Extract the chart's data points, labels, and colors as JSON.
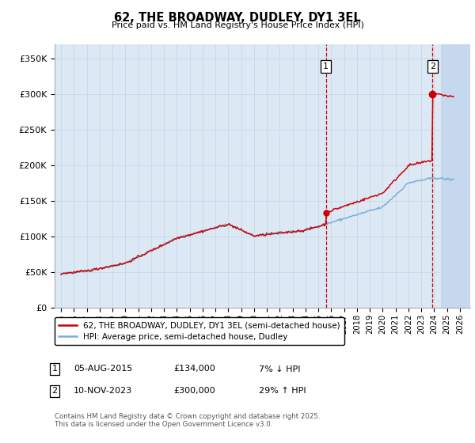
{
  "title": "62, THE BROADWAY, DUDLEY, DY1 3EL",
  "subtitle": "Price paid vs. HM Land Registry's House Price Index (HPI)",
  "ylabel_ticks": [
    "£0",
    "£50K",
    "£100K",
    "£150K",
    "£200K",
    "£250K",
    "£300K",
    "£350K"
  ],
  "ylim": [
    0,
    370000
  ],
  "xlim_start": 1994.5,
  "xlim_end": 2026.8,
  "sale1_date": 2015.59,
  "sale1_price": 134000,
  "sale1_label": "1",
  "sale2_date": 2023.86,
  "sale2_price": 300000,
  "sale2_label": "2",
  "red_line_color": "#cc0000",
  "blue_line_color": "#7bafd4",
  "hatch_color": "#c5d8ee",
  "grid_color": "#c8d8e8",
  "bg_color": "#dce9f5",
  "legend_line1": "62, THE BROADWAY, DUDLEY, DY1 3EL (semi-detached house)",
  "legend_line2": "HPI: Average price, semi-detached house, Dudley",
  "annotation1_date": "05-AUG-2015",
  "annotation1_price": "£134,000",
  "annotation1_hpi": "7% ↓ HPI",
  "annotation2_date": "10-NOV-2023",
  "annotation2_price": "£300,000",
  "annotation2_hpi": "29% ↑ HPI",
  "footer": "Contains HM Land Registry data © Crown copyright and database right 2025.\nThis data is licensed under the Open Government Licence v3.0."
}
